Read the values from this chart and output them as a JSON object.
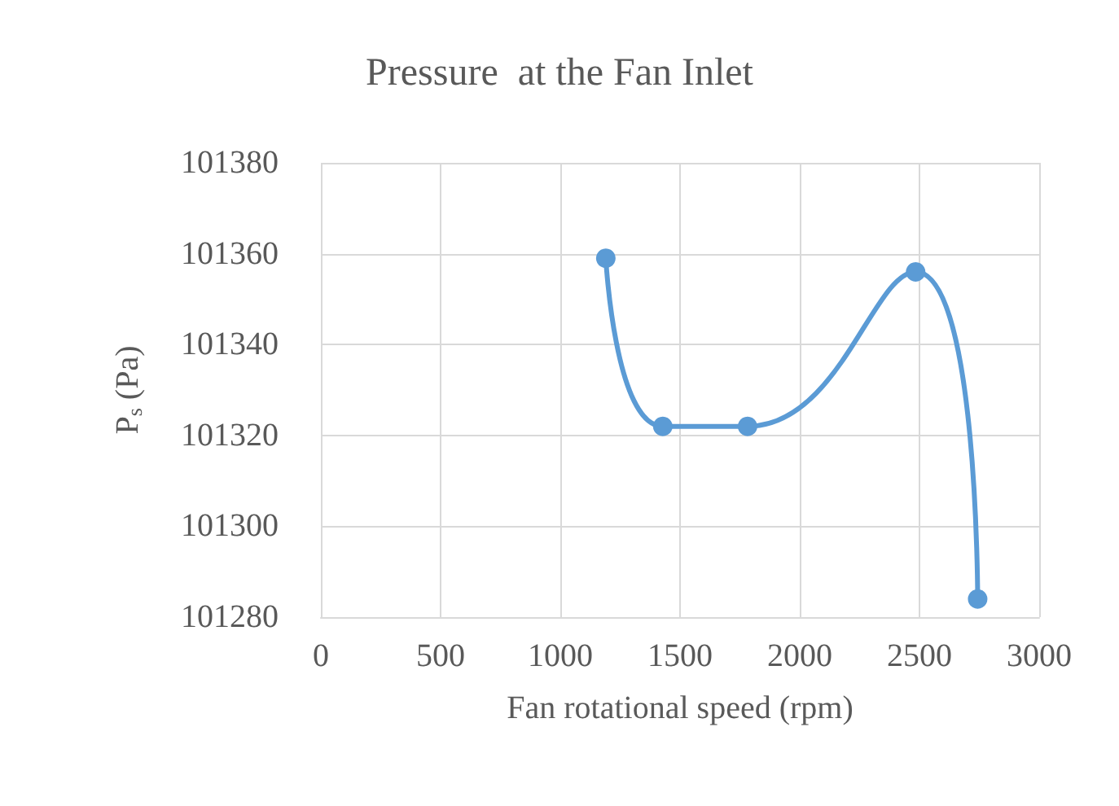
{
  "chart_data": {
    "type": "line",
    "title": "Pressure  at the Fan Inlet",
    "xlabel": "Fan rotational speed (rpm)",
    "ylabel": "P$_{s}$ (Pa)",
    "series": [
      {
        "color": "#5b9bd5",
        "x": [
          1190,
          1428,
          1782,
          2484,
          2743
        ],
        "values": [
          101359,
          101322,
          101322,
          101356,
          101284
        ]
      }
    ],
    "xlim": [
      0,
      3000
    ],
    "xticks": [
      0,
      500,
      1000,
      1500,
      2000,
      2500,
      3000
    ],
    "ylim": [
      101280,
      101380
    ],
    "yticks": [
      101280,
      101300,
      101320,
      101340,
      101360,
      101380
    ],
    "grid": true,
    "marker": "circle",
    "line_style": "solid"
  }
}
